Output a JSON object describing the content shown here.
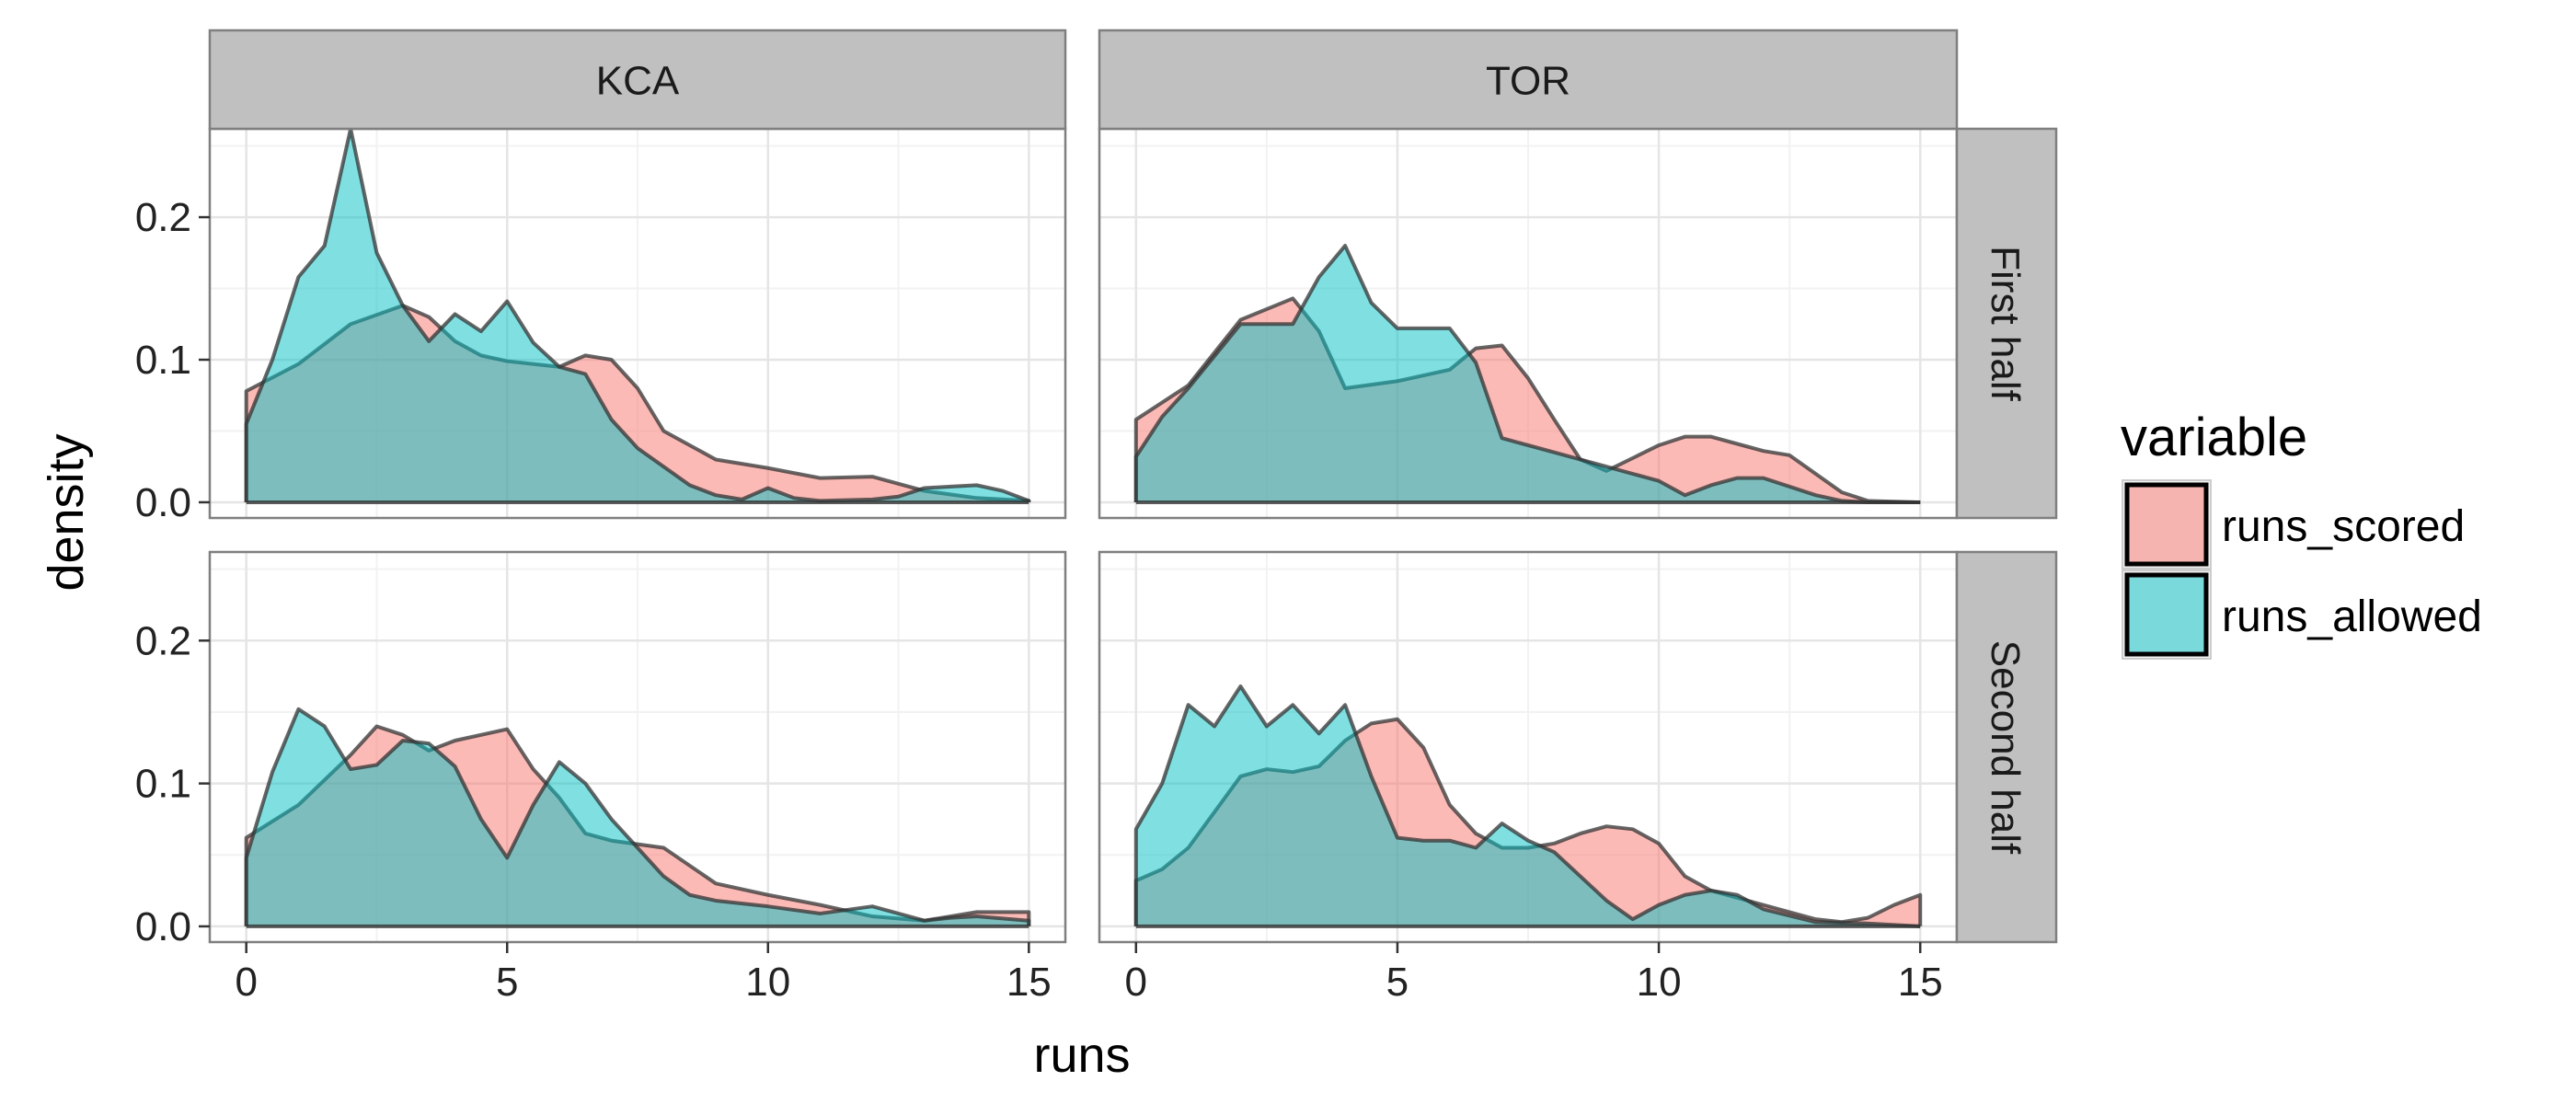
{
  "chart_data": {
    "type": "area",
    "xlabel": "runs",
    "ylabel": "density",
    "xlim": [
      -0.7,
      15.7
    ],
    "ylim": [
      -0.011,
      0.262
    ],
    "x_ticks": [
      0,
      5,
      10,
      15
    ],
    "y_ticks": [
      0.0,
      0.1,
      0.2
    ],
    "y_tick_labels": [
      "0.0",
      "0.1",
      "0.2"
    ],
    "columns": [
      "KCA",
      "TOR"
    ],
    "rows": [
      "First half",
      "Second half"
    ],
    "legend": {
      "title": "variable",
      "position": "right",
      "entries": [
        {
          "name": "runs_scored",
          "color": "#F8766D"
        },
        {
          "name": "runs_allowed",
          "color": "#00BFC4"
        }
      ]
    },
    "grid": true,
    "panels": [
      {
        "column": "KCA",
        "row": "First half",
        "series": [
          {
            "name": "runs_scored",
            "x": [
              0,
              1,
              2,
              3,
              3.5,
              4,
              4.5,
              5,
              5.5,
              6,
              6.5,
              7,
              7.5,
              8,
              9,
              10,
              11,
              12,
              13,
              14,
              15
            ],
            "y": [
              0.078,
              0.097,
              0.125,
              0.138,
              0.13,
              0.113,
              0.103,
              0.099,
              0.097,
              0.095,
              0.103,
              0.1,
              0.08,
              0.05,
              0.03,
              0.024,
              0.017,
              0.018,
              0.008,
              0.003,
              0.001
            ]
          },
          {
            "name": "runs_allowed",
            "x": [
              0,
              0.5,
              1,
              1.5,
              2,
              2.5,
              3,
              3.5,
              4,
              4.5,
              5,
              5.5,
              6,
              6.5,
              7,
              7.5,
              8,
              8.5,
              9,
              9.5,
              10,
              10.5,
              11,
              12,
              12.5,
              13,
              13.5,
              14,
              14.5,
              15
            ],
            "y": [
              0.055,
              0.1,
              0.158,
              0.18,
              0.262,
              0.175,
              0.138,
              0.113,
              0.132,
              0.12,
              0.141,
              0.112,
              0.095,
              0.09,
              0.058,
              0.038,
              0.025,
              0.012,
              0.005,
              0.002,
              0.01,
              0.003,
              0.001,
              0.002,
              0.004,
              0.01,
              0.011,
              0.012,
              0.008,
              0.001
            ]
          }
        ]
      },
      {
        "column": "TOR",
        "row": "First half",
        "series": [
          {
            "name": "runs_scored",
            "x": [
              0,
              1,
              2,
              3,
              3.5,
              4,
              5,
              6,
              6.5,
              7,
              7.5,
              8,
              8.5,
              9,
              10,
              10.5,
              11,
              12,
              12.5,
              13,
              13.5,
              14,
              15
            ],
            "y": [
              0.058,
              0.082,
              0.128,
              0.143,
              0.12,
              0.08,
              0.085,
              0.093,
              0.108,
              0.11,
              0.087,
              0.058,
              0.03,
              0.022,
              0.04,
              0.046,
              0.046,
              0.036,
              0.033,
              0.02,
              0.007,
              0.001,
              0.0
            ]
          },
          {
            "name": "runs_allowed",
            "x": [
              0,
              0.5,
              1,
              2,
              3,
              3.5,
              4,
              4.5,
              5,
              5.5,
              6,
              6.5,
              7,
              8,
              9,
              10,
              10.5,
              11,
              11.5,
              12,
              13,
              13.5,
              14,
              15
            ],
            "y": [
              0.032,
              0.06,
              0.08,
              0.125,
              0.125,
              0.158,
              0.18,
              0.14,
              0.122,
              0.122,
              0.122,
              0.098,
              0.045,
              0.035,
              0.025,
              0.015,
              0.005,
              0.012,
              0.017,
              0.017,
              0.005,
              0.001,
              0.0,
              0.0
            ]
          }
        ]
      },
      {
        "column": "KCA",
        "row": "Second half",
        "series": [
          {
            "name": "runs_scored",
            "x": [
              0,
              1,
              2,
              2.5,
              3,
              3.5,
              4,
              5,
              5.5,
              6,
              6.5,
              7,
              8,
              9,
              10,
              11,
              12,
              13,
              14,
              15
            ],
            "y": [
              0.062,
              0.085,
              0.12,
              0.14,
              0.134,
              0.123,
              0.13,
              0.138,
              0.11,
              0.09,
              0.065,
              0.06,
              0.055,
              0.03,
              0.022,
              0.015,
              0.007,
              0.004,
              0.01,
              0.01
            ]
          },
          {
            "name": "runs_allowed",
            "x": [
              0,
              0.5,
              1,
              1.5,
              2,
              2.5,
              3,
              3.5,
              4,
              4.5,
              5,
              5.5,
              6,
              6.5,
              7,
              7.5,
              8,
              8.5,
              9,
              10,
              11,
              12,
              13,
              13.5,
              14,
              15
            ],
            "y": [
              0.048,
              0.108,
              0.152,
              0.14,
              0.11,
              0.113,
              0.13,
              0.128,
              0.112,
              0.075,
              0.048,
              0.085,
              0.115,
              0.1,
              0.075,
              0.055,
              0.035,
              0.022,
              0.018,
              0.014,
              0.009,
              0.014,
              0.004,
              0.006,
              0.007,
              0.004
            ]
          }
        ]
      },
      {
        "column": "TOR",
        "row": "Second half",
        "series": [
          {
            "name": "runs_scored",
            "x": [
              0,
              0.5,
              1,
              1.5,
              2,
              2.5,
              3,
              3.5,
              4,
              4.5,
              5,
              5.5,
              6,
              6.5,
              7,
              7.5,
              8,
              8.5,
              9,
              9.5,
              10,
              10.5,
              11,
              12,
              13,
              13.5,
              14,
              14.5,
              15
            ],
            "y": [
              0.032,
              0.04,
              0.055,
              0.08,
              0.105,
              0.11,
              0.108,
              0.112,
              0.13,
              0.142,
              0.145,
              0.125,
              0.085,
              0.065,
              0.055,
              0.055,
              0.058,
              0.065,
              0.07,
              0.068,
              0.058,
              0.035,
              0.025,
              0.015,
              0.005,
              0.003,
              0.006,
              0.015,
              0.022
            ]
          },
          {
            "name": "runs_allowed",
            "x": [
              0,
              0.5,
              1,
              1.5,
              2,
              2.5,
              3,
              3.5,
              4,
              4.5,
              5,
              5.5,
              6,
              6.5,
              7,
              7.5,
              8,
              8.5,
              9,
              9.5,
              10,
              10.5,
              11,
              11.5,
              12,
              13,
              14,
              15
            ],
            "y": [
              0.068,
              0.1,
              0.155,
              0.14,
              0.168,
              0.14,
              0.155,
              0.135,
              0.155,
              0.105,
              0.062,
              0.06,
              0.06,
              0.055,
              0.072,
              0.06,
              0.052,
              0.035,
              0.018,
              0.005,
              0.015,
              0.022,
              0.025,
              0.022,
              0.012,
              0.003,
              0.002,
              0.0
            ]
          }
        ]
      }
    ]
  }
}
